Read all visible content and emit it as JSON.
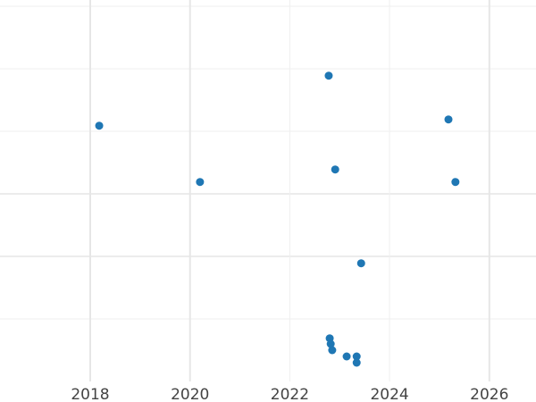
{
  "chart_data": {
    "type": "scatter",
    "title": "",
    "xlabel": "",
    "ylabel": "",
    "xlim": [
      2016.2,
      2026.95
    ],
    "ylim": [
      0,
      6.1
    ],
    "x_ticks": [
      "2018",
      "2020",
      "2022",
      "2024",
      "2026"
    ],
    "x_tick_values": [
      2018,
      2020,
      2022,
      2024,
      2026
    ],
    "y_gridlines": [
      1,
      2,
      3,
      4,
      5,
      6
    ],
    "y_tick_labels_shown": false,
    "grid": true,
    "marker_color": "#1f77b4",
    "points": [
      {
        "x": 2018.18,
        "y": 4.09
      },
      {
        "x": 2020.2,
        "y": 3.19
      },
      {
        "x": 2022.78,
        "y": 4.89
      },
      {
        "x": 2022.91,
        "y": 3.39
      },
      {
        "x": 2023.43,
        "y": 1.89
      },
      {
        "x": 2025.18,
        "y": 4.19
      },
      {
        "x": 2025.32,
        "y": 3.19
      },
      {
        "x": 2022.8,
        "y": 0.69
      },
      {
        "x": 2022.82,
        "y": 0.6
      },
      {
        "x": 2022.85,
        "y": 0.5
      },
      {
        "x": 2023.14,
        "y": 0.4
      },
      {
        "x": 2023.34,
        "y": 0.4
      },
      {
        "x": 2023.34,
        "y": 0.3
      }
    ]
  }
}
